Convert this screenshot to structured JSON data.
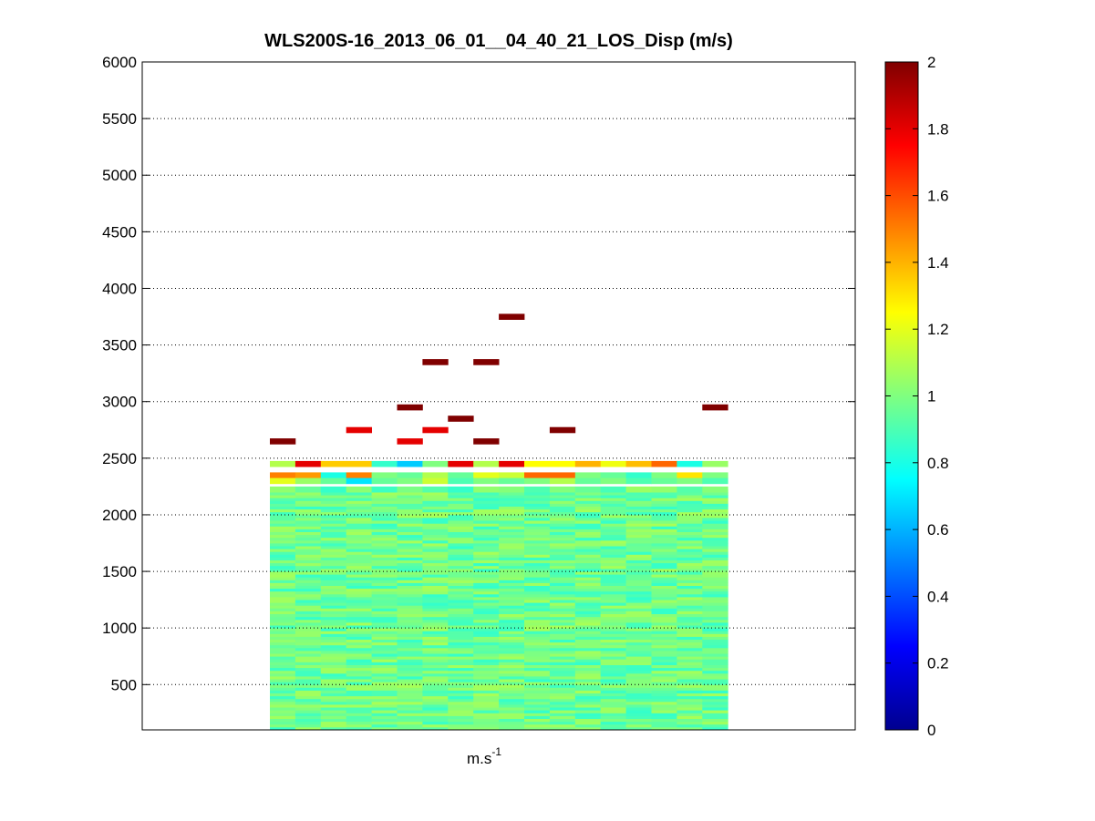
{
  "chart_data": {
    "type": "heatmap",
    "title": "WLS200S-16_2013_06_01__04_40_21_LOS_Disp (m/s)",
    "xlabel": {
      "base": "m.s",
      "exponent": "-1"
    },
    "ylabel": "",
    "ylim": [
      100,
      6000
    ],
    "yticks": [
      500,
      1000,
      1500,
      2000,
      2500,
      3000,
      3500,
      4000,
      4500,
      5000,
      5500,
      6000
    ],
    "grid": "y-dotted",
    "colormap": "jet",
    "colorbar": {
      "clim": [
        0,
        2
      ],
      "ticks": [
        0,
        0.2,
        0.4,
        0.6,
        0.8,
        1,
        1.2,
        1.4,
        1.6,
        1.8,
        2
      ],
      "tick_labels": [
        "0",
        "0.2",
        "0.4",
        "0.6",
        "0.8",
        "1",
        "1.2",
        "1.4",
        "1.6",
        "1.8",
        "2"
      ]
    },
    "columns": 18,
    "bulk_field": {
      "alt_range": [
        100,
        2250
      ],
      "row_height": 50,
      "value_range": [
        0.85,
        1.08
      ]
    },
    "cells": [
      {
        "col": 0,
        "alt": 2450,
        "v": 1.1
      },
      {
        "col": 1,
        "alt": 2450,
        "v": 1.8
      },
      {
        "col": 2,
        "alt": 2450,
        "v": 1.35
      },
      {
        "col": 3,
        "alt": 2450,
        "v": 1.35
      },
      {
        "col": 4,
        "alt": 2450,
        "v": 0.85
      },
      {
        "col": 5,
        "alt": 2450,
        "v": 0.65
      },
      {
        "col": 6,
        "alt": 2450,
        "v": 1.0
      },
      {
        "col": 7,
        "alt": 2450,
        "v": 1.8
      },
      {
        "col": 8,
        "alt": 2450,
        "v": 1.1
      },
      {
        "col": 9,
        "alt": 2450,
        "v": 1.8
      },
      {
        "col": 10,
        "alt": 2450,
        "v": 1.25
      },
      {
        "col": 11,
        "alt": 2450,
        "v": 1.25
      },
      {
        "col": 12,
        "alt": 2450,
        "v": 1.4
      },
      {
        "col": 13,
        "alt": 2450,
        "v": 1.22
      },
      {
        "col": 14,
        "alt": 2450,
        "v": 1.38
      },
      {
        "col": 15,
        "alt": 2450,
        "v": 1.55
      },
      {
        "col": 16,
        "alt": 2450,
        "v": 0.8
      },
      {
        "col": 17,
        "alt": 2450,
        "v": 1.05
      },
      {
        "col": 0,
        "alt": 2350,
        "v": 1.5
      },
      {
        "col": 1,
        "alt": 2350,
        "v": 1.45
      },
      {
        "col": 2,
        "alt": 2350,
        "v": 0.8
      },
      {
        "col": 3,
        "alt": 2350,
        "v": 1.5
      },
      {
        "col": 4,
        "alt": 2350,
        "v": 1.0
      },
      {
        "col": 5,
        "alt": 2350,
        "v": 0.95
      },
      {
        "col": 6,
        "alt": 2350,
        "v": 1.1
      },
      {
        "col": 7,
        "alt": 2350,
        "v": 0.95
      },
      {
        "col": 8,
        "alt": 2350,
        "v": 1.2
      },
      {
        "col": 9,
        "alt": 2350,
        "v": 1.15
      },
      {
        "col": 10,
        "alt": 2350,
        "v": 1.55
      },
      {
        "col": 11,
        "alt": 2350,
        "v": 1.55
      },
      {
        "col": 12,
        "alt": 2350,
        "v": 1.0
      },
      {
        "col": 13,
        "alt": 2350,
        "v": 0.95
      },
      {
        "col": 14,
        "alt": 2350,
        "v": 0.85
      },
      {
        "col": 15,
        "alt": 2350,
        "v": 1.0
      },
      {
        "col": 16,
        "alt": 2350,
        "v": 1.3
      },
      {
        "col": 17,
        "alt": 2350,
        "v": 1.0
      },
      {
        "col": 0,
        "alt": 2300,
        "v": 1.2
      },
      {
        "col": 1,
        "alt": 2300,
        "v": 1.05
      },
      {
        "col": 2,
        "alt": 2300,
        "v": 0.95
      },
      {
        "col": 3,
        "alt": 2300,
        "v": 0.7
      },
      {
        "col": 4,
        "alt": 2300,
        "v": 0.95
      },
      {
        "col": 5,
        "alt": 2300,
        "v": 1.0
      },
      {
        "col": 6,
        "alt": 2300,
        "v": 1.15
      },
      {
        "col": 7,
        "alt": 2300,
        "v": 0.9
      },
      {
        "col": 8,
        "alt": 2300,
        "v": 1.0
      },
      {
        "col": 9,
        "alt": 2300,
        "v": 0.95
      },
      {
        "col": 10,
        "alt": 2300,
        "v": 1.0
      },
      {
        "col": 11,
        "alt": 2300,
        "v": 1.1
      },
      {
        "col": 12,
        "alt": 2300,
        "v": 0.95
      },
      {
        "col": 13,
        "alt": 2300,
        "v": 1.0
      },
      {
        "col": 14,
        "alt": 2300,
        "v": 0.9
      },
      {
        "col": 15,
        "alt": 2300,
        "v": 0.95
      },
      {
        "col": 16,
        "alt": 2300,
        "v": 1.0
      },
      {
        "col": 17,
        "alt": 2300,
        "v": 0.9
      },
      {
        "col": 0,
        "alt": 2650,
        "v": 2.0
      },
      {
        "col": 3,
        "alt": 2750,
        "v": 1.8
      },
      {
        "col": 5,
        "alt": 2650,
        "v": 1.8
      },
      {
        "col": 6,
        "alt": 2750,
        "v": 1.8
      },
      {
        "col": 5,
        "alt": 2950,
        "v": 2.0
      },
      {
        "col": 7,
        "alt": 2850,
        "v": 2.0
      },
      {
        "col": 8,
        "alt": 2650,
        "v": 2.0
      },
      {
        "col": 6,
        "alt": 3350,
        "v": 2.0
      },
      {
        "col": 8,
        "alt": 3350,
        "v": 2.0
      },
      {
        "col": 9,
        "alt": 3750,
        "v": 2.0
      },
      {
        "col": 11,
        "alt": 2750,
        "v": 2.0
      },
      {
        "col": 17,
        "alt": 2950,
        "v": 2.0
      }
    ]
  }
}
